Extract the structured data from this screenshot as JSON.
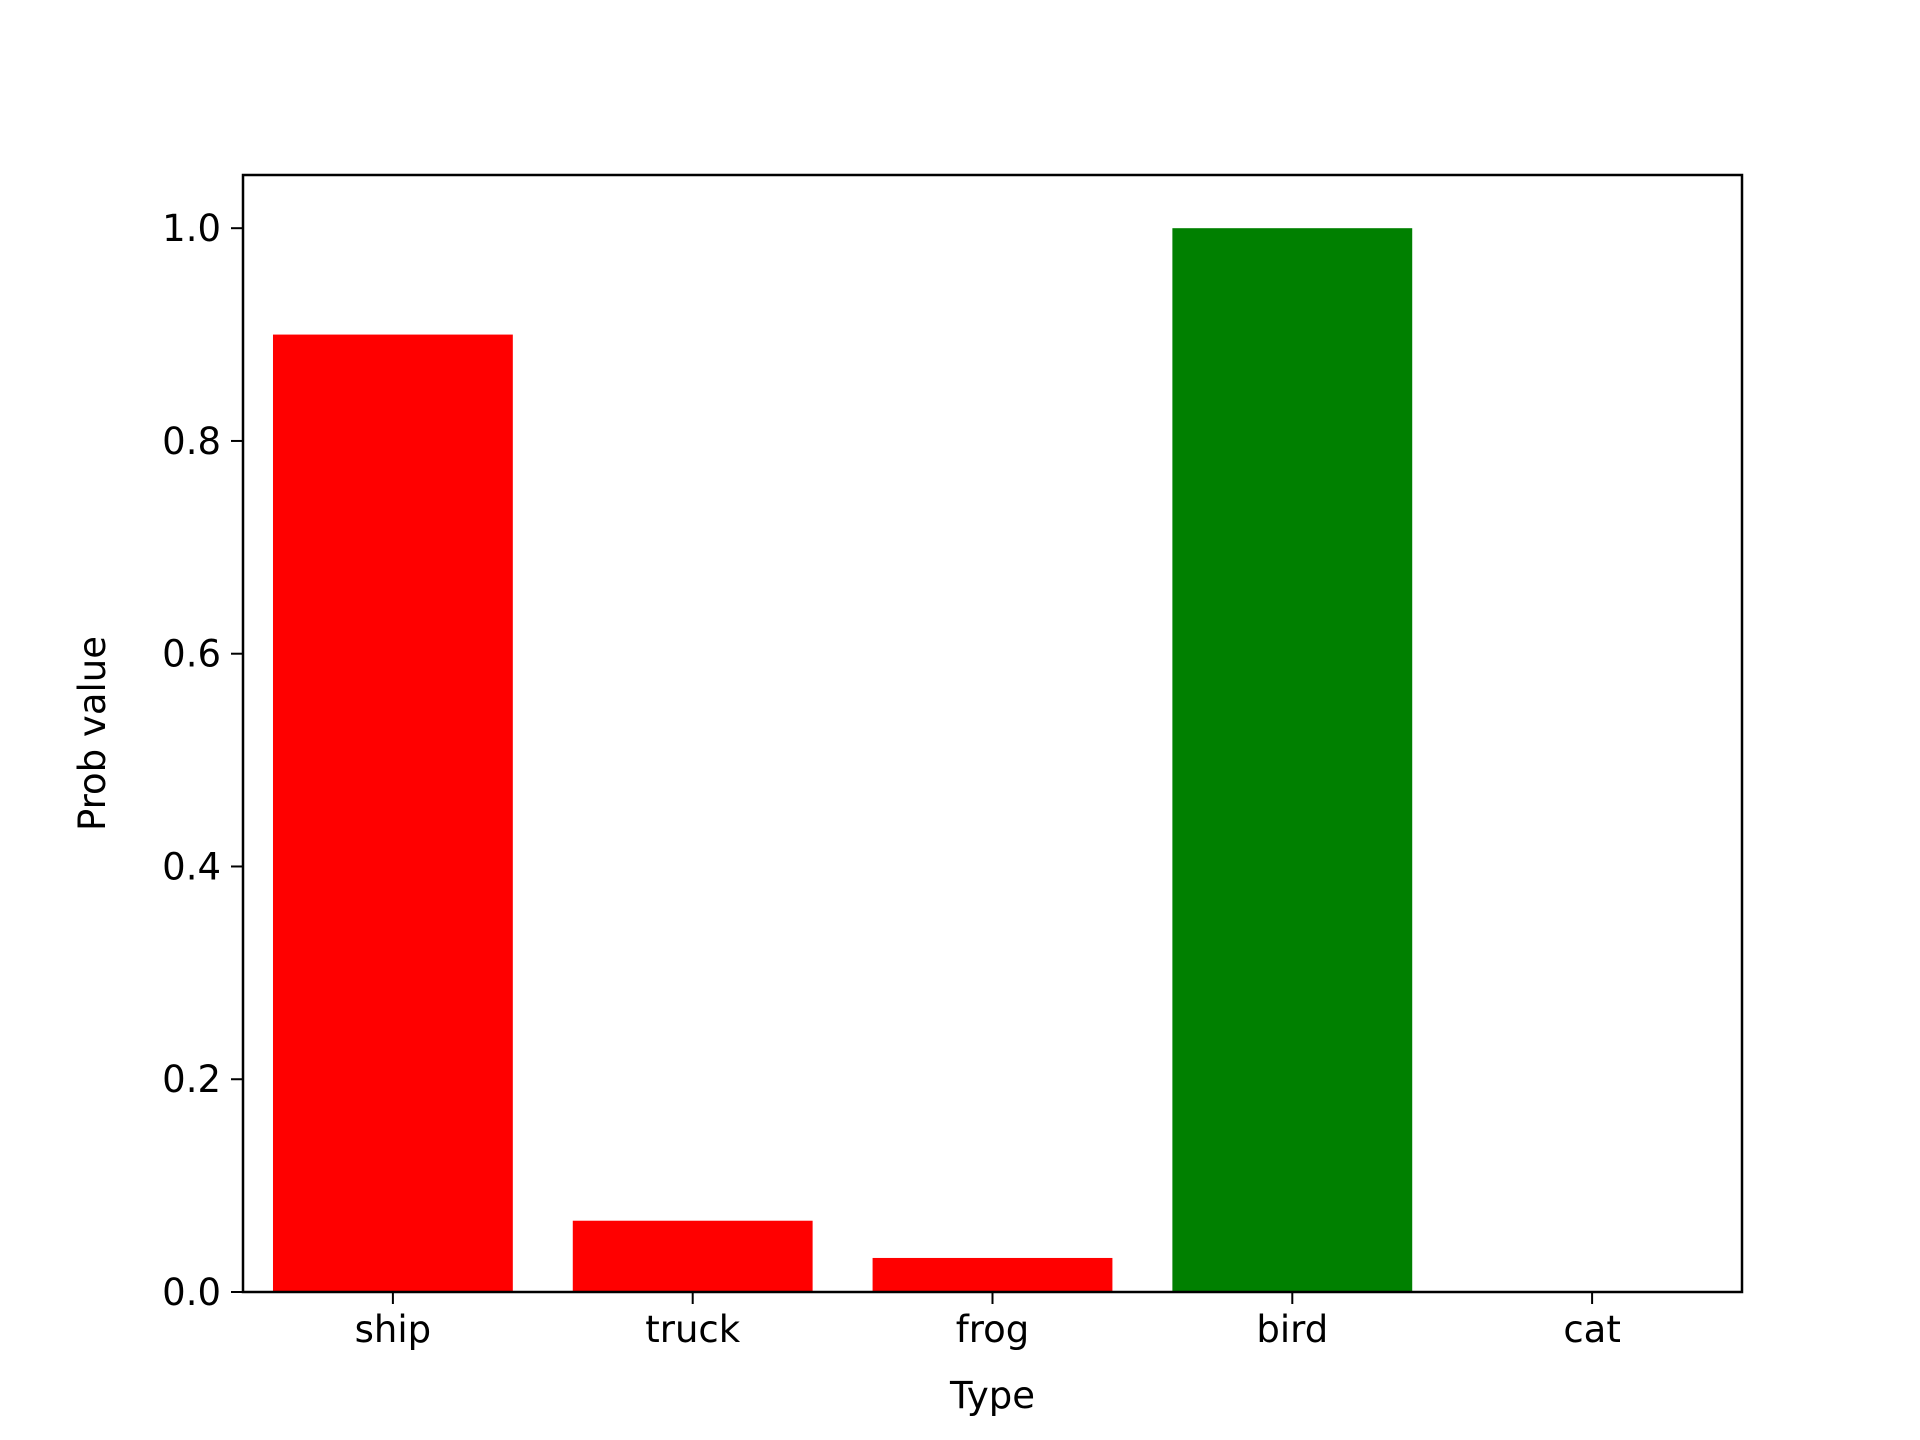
{
  "chart_data": {
    "type": "bar",
    "title": "",
    "xlabel": "Type",
    "ylabel": "Prob value",
    "categories": [
      "ship",
      "truck",
      "frog",
      "bird",
      "cat"
    ],
    "values": [
      0.9,
      0.067,
      0.032,
      1.0,
      0.0
    ],
    "bar_colors": [
      "#ff0000",
      "#ff0000",
      "#ff0000",
      "#008000",
      "#ff0000"
    ],
    "ylim": [
      0,
      1.05
    ],
    "yticks": [
      0.0,
      0.2,
      0.4,
      0.6,
      0.8,
      1.0
    ],
    "ytick_labels": [
      "0.0",
      "0.2",
      "0.4",
      "0.6",
      "0.8",
      "1.0"
    ],
    "grid": false,
    "legend": "none"
  }
}
